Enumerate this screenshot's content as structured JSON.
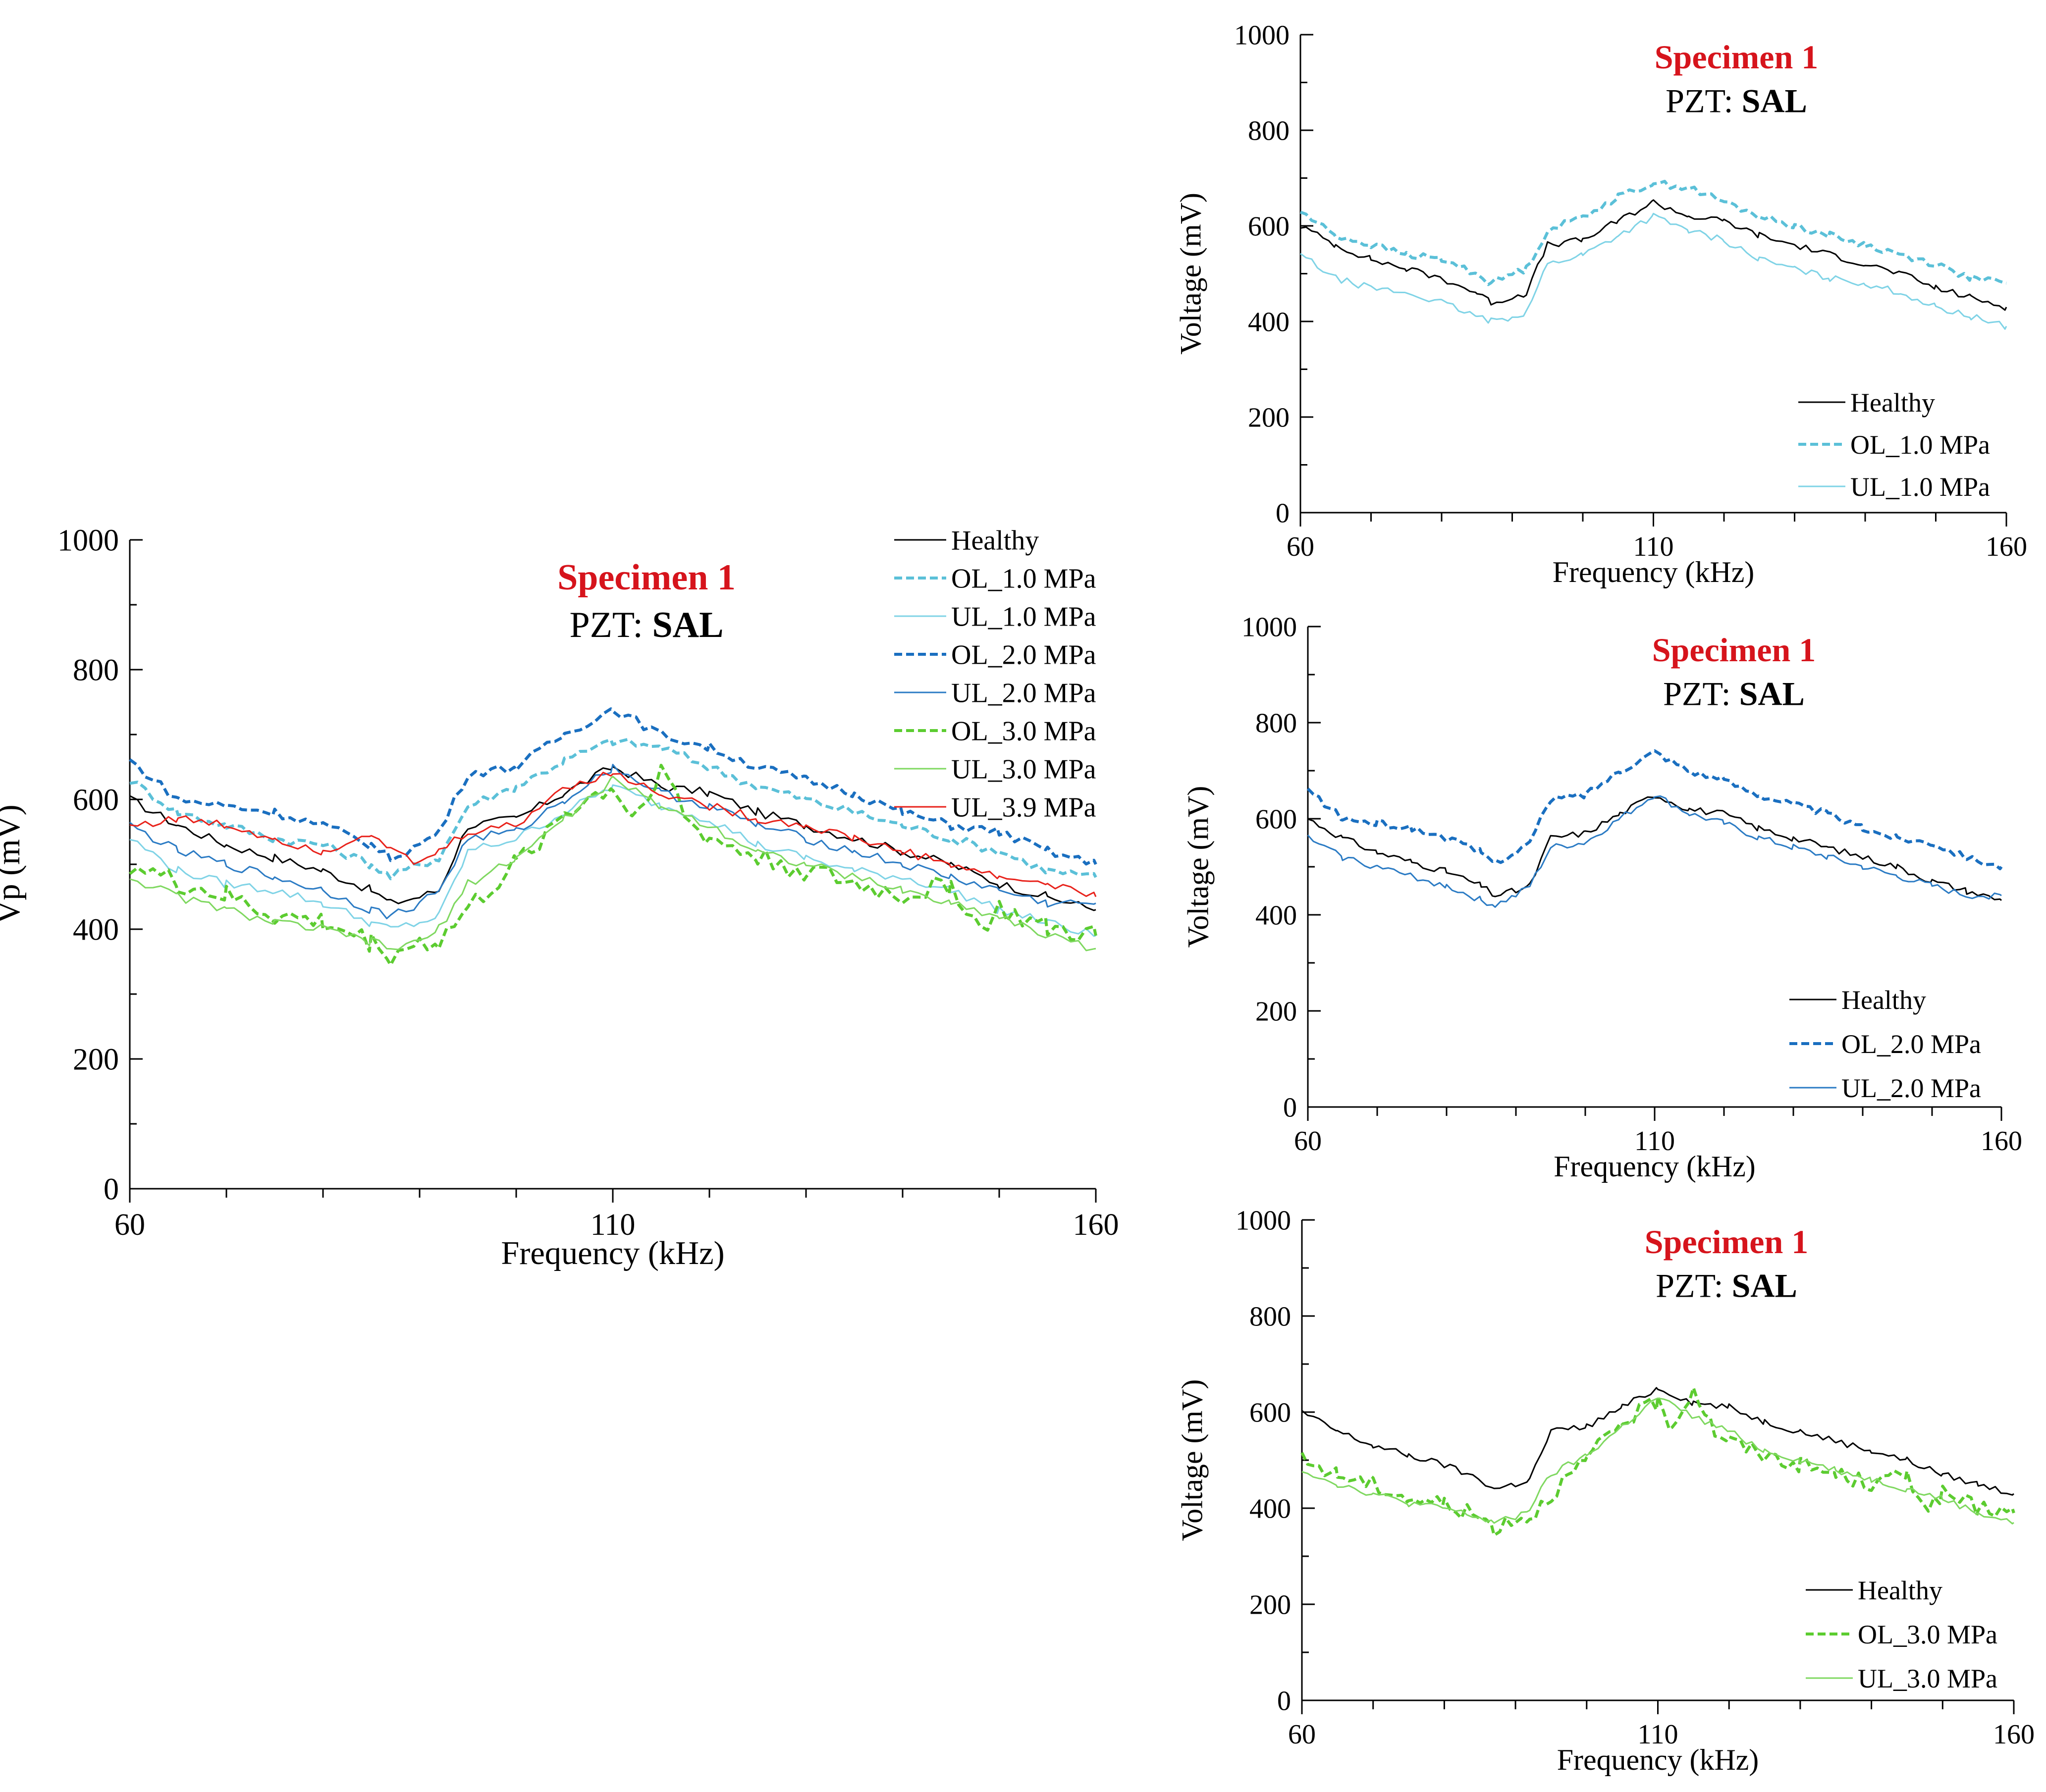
{
  "chart_data": [
    {
      "type": "line",
      "title": "Specimen 1",
      "subtitle_prefix": "PZT: ",
      "subtitle_bold": "SAL",
      "xlabel": "Frequency (kHz)",
      "ylabel": "Vp (mV)",
      "xlim": [
        60,
        160
      ],
      "ylim": [
        0,
        1000
      ],
      "xticks": [
        60,
        110,
        160
      ],
      "yticks": [
        0,
        200,
        400,
        600,
        800,
        1000
      ],
      "grid": false,
      "legend_position": "top-right",
      "series": [
        {
          "name": "Healthy",
          "color": "#000000",
          "dash": "solid",
          "width": "thin",
          "x": [
            60,
            65,
            70,
            75,
            80,
            85,
            87,
            90,
            92,
            95,
            100,
            105,
            110,
            115,
            120,
            125,
            130,
            135,
            140,
            145,
            150,
            155,
            160
          ],
          "y": [
            600,
            560,
            530,
            510,
            490,
            460,
            440,
            450,
            460,
            560,
            570,
            610,
            650,
            620,
            610,
            580,
            560,
            540,
            520,
            500,
            470,
            450,
            430
          ]
        },
        {
          "name": "OL_1.0 MPa",
          "color": "#5bc0d8",
          "dash": "dashed",
          "width": "thick",
          "x": [
            60,
            65,
            70,
            75,
            80,
            85,
            87,
            90,
            92,
            95,
            100,
            105,
            110,
            115,
            120,
            125,
            130,
            135,
            140,
            145,
            150,
            155,
            160
          ],
          "y": [
            630,
            580,
            560,
            540,
            530,
            500,
            480,
            500,
            510,
            590,
            620,
            660,
            690,
            680,
            650,
            620,
            600,
            580,
            560,
            540,
            520,
            490,
            480
          ]
        },
        {
          "name": "UL_1.0 MPa",
          "color": "#7fd3e6",
          "dash": "solid",
          "width": "thin",
          "x": [
            60,
            65,
            70,
            75,
            80,
            85,
            87,
            90,
            92,
            95,
            100,
            105,
            110,
            115,
            120,
            125,
            130,
            135,
            140,
            145,
            150,
            155,
            160
          ],
          "y": [
            540,
            490,
            470,
            460,
            440,
            410,
            400,
            410,
            420,
            520,
            540,
            580,
            620,
            590,
            570,
            530,
            510,
            490,
            480,
            460,
            430,
            410,
            390
          ]
        },
        {
          "name": "OL_2.0 MPa",
          "color": "#1a6fc0",
          "dash": "dashed",
          "width": "thick",
          "x": [
            60,
            65,
            70,
            75,
            80,
            85,
            87,
            90,
            92,
            95,
            100,
            105,
            110,
            115,
            120,
            125,
            130,
            135,
            140,
            145,
            150,
            155,
            160
          ],
          "y": [
            660,
            600,
            590,
            580,
            560,
            530,
            510,
            530,
            550,
            640,
            650,
            700,
            740,
            700,
            680,
            650,
            630,
            610,
            580,
            560,
            550,
            520,
            500
          ]
        },
        {
          "name": "UL_2.0 MPa",
          "color": "#2b7bc4",
          "dash": "solid",
          "width": "thin",
          "x": [
            60,
            65,
            70,
            75,
            80,
            85,
            87,
            90,
            92,
            95,
            100,
            105,
            110,
            115,
            120,
            125,
            130,
            135,
            140,
            145,
            150,
            155,
            160
          ],
          "y": [
            560,
            520,
            500,
            480,
            460,
            430,
            420,
            440,
            460,
            540,
            550,
            600,
            650,
            610,
            590,
            560,
            540,
            520,
            500,
            480,
            460,
            440,
            440
          ]
        },
        {
          "name": "OL_3.0 MPa",
          "color": "#5ccc30",
          "dash": "dashed",
          "width": "thick",
          "x": [
            60,
            65,
            70,
            75,
            80,
            85,
            87,
            90,
            92,
            95,
            100,
            105,
            110,
            112,
            115,
            118,
            120,
            125,
            130,
            135,
            140,
            145,
            148,
            150,
            155,
            160
          ],
          "y": [
            500,
            470,
            450,
            420,
            410,
            380,
            360,
            380,
            380,
            430,
            500,
            580,
            620,
            570,
            650,
            560,
            540,
            510,
            490,
            470,
            450,
            470,
            400,
            430,
            400,
            390
          ]
        },
        {
          "name": "UL_3.0 MPa",
          "color": "#7fd860",
          "dash": "solid",
          "width": "thin",
          "x": [
            60,
            65,
            70,
            75,
            80,
            85,
            87,
            90,
            92,
            95,
            100,
            105,
            110,
            115,
            120,
            125,
            130,
            135,
            140,
            145,
            150,
            155,
            160
          ],
          "y": [
            480,
            450,
            430,
            410,
            400,
            380,
            370,
            380,
            400,
            470,
            510,
            570,
            630,
            590,
            560,
            520,
            500,
            480,
            460,
            440,
            420,
            390,
            370
          ]
        },
        {
          "name": "UL_3.9 MPa",
          "color": "#e8221b",
          "dash": "solid",
          "width": "thin",
          "x": [
            60,
            65,
            70,
            75,
            80,
            85,
            87,
            90,
            92,
            95,
            100,
            105,
            110,
            115,
            120,
            125,
            130,
            135,
            140,
            145,
            150,
            155,
            160
          ],
          "y": [
            560,
            570,
            560,
            540,
            520,
            550,
            520,
            500,
            520,
            550,
            560,
            620,
            640,
            610,
            590,
            570,
            560,
            540,
            520,
            500,
            480,
            470,
            450
          ]
        }
      ]
    },
    {
      "type": "line",
      "title": "Specimen 1",
      "subtitle_prefix": "PZT: ",
      "subtitle_bold": "SAL",
      "xlabel": "Frequency (kHz)",
      "ylabel": "Voltage (mV)",
      "xlim": [
        60,
        160
      ],
      "ylim": [
        0,
        1000
      ],
      "xticks": [
        60,
        110,
        160
      ],
      "yticks": [
        0,
        200,
        400,
        600,
        800,
        1000
      ],
      "grid": false,
      "legend_position": "bottom-right",
      "series": [
        {
          "name": "Healthy",
          "color": "#000000",
          "dash": "solid",
          "width": "thin",
          "x": [
            60,
            65,
            70,
            75,
            80,
            85,
            87,
            90,
            92,
            95,
            100,
            105,
            110,
            115,
            120,
            125,
            130,
            135,
            140,
            145,
            150,
            155,
            160
          ],
          "y": [
            600,
            560,
            530,
            510,
            490,
            460,
            440,
            450,
            460,
            560,
            570,
            610,
            650,
            620,
            610,
            580,
            560,
            540,
            520,
            500,
            470,
            450,
            430
          ]
        },
        {
          "name": "OL_1.0 MPa",
          "color": "#5bc0d8",
          "dash": "dashed",
          "width": "thick",
          "x": [
            60,
            65,
            70,
            75,
            80,
            85,
            87,
            90,
            92,
            95,
            100,
            105,
            110,
            115,
            120,
            125,
            130,
            135,
            140,
            145,
            150,
            155,
            160
          ],
          "y": [
            630,
            580,
            560,
            540,
            530,
            500,
            480,
            500,
            510,
            590,
            620,
            660,
            690,
            680,
            650,
            620,
            600,
            580,
            560,
            540,
            520,
            490,
            480
          ]
        },
        {
          "name": "UL_1.0 MPa",
          "color": "#7fd3e6",
          "dash": "solid",
          "width": "thin",
          "x": [
            60,
            65,
            70,
            75,
            80,
            85,
            87,
            90,
            92,
            95,
            100,
            105,
            110,
            115,
            120,
            125,
            130,
            135,
            140,
            145,
            150,
            155,
            160
          ],
          "y": [
            540,
            490,
            470,
            460,
            440,
            410,
            400,
            410,
            420,
            520,
            540,
            580,
            620,
            590,
            570,
            530,
            510,
            490,
            480,
            460,
            430,
            410,
            390
          ]
        }
      ]
    },
    {
      "type": "line",
      "title": "Specimen 1",
      "subtitle_prefix": "PZT: ",
      "subtitle_bold": "SAL",
      "xlabel": "Frequency (kHz)",
      "ylabel": "Voltage (mV)",
      "xlim": [
        60,
        160
      ],
      "ylim": [
        0,
        1000
      ],
      "xticks": [
        60,
        110,
        160
      ],
      "yticks": [
        0,
        200,
        400,
        600,
        800,
        1000
      ],
      "grid": false,
      "legend_position": "bottom-right",
      "series": [
        {
          "name": "Healthy",
          "color": "#000000",
          "dash": "solid",
          "width": "thin",
          "x": [
            60,
            65,
            70,
            75,
            80,
            85,
            87,
            90,
            92,
            95,
            100,
            105,
            110,
            115,
            120,
            125,
            130,
            135,
            140,
            145,
            150,
            155,
            160
          ],
          "y": [
            600,
            560,
            530,
            510,
            490,
            460,
            440,
            450,
            460,
            560,
            570,
            610,
            650,
            620,
            610,
            580,
            560,
            540,
            520,
            500,
            470,
            450,
            430
          ]
        },
        {
          "name": "OL_2.0 MPa",
          "color": "#1a6fc0",
          "dash": "dashed",
          "width": "thick",
          "x": [
            60,
            65,
            70,
            75,
            80,
            85,
            87,
            90,
            92,
            95,
            100,
            105,
            110,
            115,
            120,
            125,
            130,
            135,
            140,
            145,
            150,
            155,
            160
          ],
          "y": [
            660,
            600,
            590,
            580,
            560,
            530,
            510,
            530,
            550,
            640,
            650,
            700,
            740,
            700,
            680,
            650,
            630,
            610,
            580,
            560,
            550,
            520,
            500
          ]
        },
        {
          "name": "UL_2.0 MPa",
          "color": "#2b7bc4",
          "dash": "solid",
          "width": "thin",
          "x": [
            60,
            65,
            70,
            75,
            80,
            85,
            87,
            90,
            92,
            95,
            100,
            105,
            110,
            115,
            120,
            125,
            130,
            135,
            140,
            145,
            150,
            155,
            160
          ],
          "y": [
            560,
            520,
            500,
            480,
            460,
            430,
            420,
            440,
            460,
            540,
            550,
            600,
            650,
            610,
            590,
            560,
            540,
            520,
            500,
            480,
            460,
            440,
            440
          ]
        }
      ]
    },
    {
      "type": "line",
      "title": "Specimen 1",
      "subtitle_prefix": "PZT: ",
      "subtitle_bold": "SAL",
      "xlabel": "Frequency (kHz)",
      "ylabel": "Voltage (mV)",
      "xlim": [
        60,
        160
      ],
      "ylim": [
        0,
        1000
      ],
      "xticks": [
        60,
        110,
        160
      ],
      "yticks": [
        0,
        200,
        400,
        600,
        800,
        1000
      ],
      "grid": false,
      "legend_position": "bottom-right",
      "series": [
        {
          "name": "Healthy",
          "color": "#000000",
          "dash": "solid",
          "width": "thin",
          "x": [
            60,
            65,
            70,
            75,
            80,
            85,
            87,
            90,
            92,
            95,
            100,
            105,
            110,
            115,
            120,
            125,
            130,
            135,
            140,
            145,
            150,
            155,
            160
          ],
          "y": [
            600,
            560,
            530,
            510,
            490,
            460,
            440,
            450,
            460,
            560,
            570,
            610,
            650,
            620,
            610,
            580,
            560,
            540,
            520,
            500,
            470,
            450,
            430
          ]
        },
        {
          "name": "OL_3.0 MPa",
          "color": "#5ccc30",
          "dash": "dashed",
          "width": "thick",
          "x": [
            60,
            65,
            70,
            75,
            80,
            85,
            87,
            90,
            92,
            95,
            100,
            105,
            110,
            112,
            115,
            118,
            120,
            125,
            130,
            135,
            140,
            145,
            148,
            150,
            155,
            160
          ],
          "y": [
            500,
            470,
            450,
            420,
            410,
            380,
            360,
            380,
            380,
            430,
            500,
            580,
            620,
            570,
            650,
            560,
            540,
            510,
            490,
            470,
            450,
            470,
            400,
            430,
            400,
            390
          ]
        },
        {
          "name": "UL_3.0 MPa",
          "color": "#7fd860",
          "dash": "solid",
          "width": "thin",
          "x": [
            60,
            65,
            70,
            75,
            80,
            85,
            87,
            90,
            92,
            95,
            100,
            105,
            110,
            115,
            120,
            125,
            130,
            135,
            140,
            145,
            150,
            155,
            160
          ],
          "y": [
            480,
            450,
            430,
            410,
            400,
            380,
            370,
            380,
            400,
            470,
            510,
            570,
            630,
            590,
            560,
            520,
            500,
            480,
            460,
            440,
            420,
            390,
            370
          ]
        }
      ]
    }
  ]
}
